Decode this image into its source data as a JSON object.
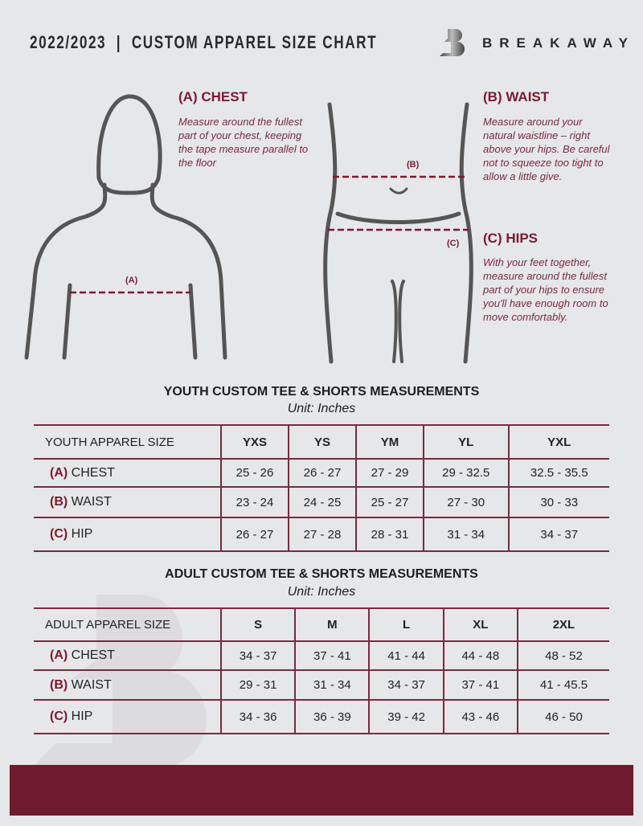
{
  "header": {
    "title": "2022/2023  |  CUSTOM APPAREL SIZE CHART",
    "brand": "BREAKAWAY",
    "logo_letter": "B"
  },
  "measure": {
    "chest": {
      "heading": "(A) CHEST",
      "text": "Measure around the fullest part of your chest, keeping the tape measure parallel to the floor",
      "label": "(A)"
    },
    "waist": {
      "heading": "(B) WAIST",
      "text": "Measure around your natural waistline – right above your hips. Be careful not to squeeze too tight to allow a little give.",
      "label": "(B)"
    },
    "hips": {
      "heading": "(C) HIPS",
      "text": "With your feet together, measure around the fullest part of your hips to ensure you'll have enough room to move comfortably.",
      "label": "(C)"
    }
  },
  "colors": {
    "accent": "#7a1a30",
    "background": "#e6e7e9",
    "footer": "#701a2e"
  },
  "youth": {
    "title": "YOUTH CUSTOM TEE & SHORTS MEASUREMENTS",
    "unit": "Unit: Inches",
    "size_label": "YOUTH APPAREL SIZE",
    "sizes": [
      "YXS",
      "YS",
      "YM",
      "YL",
      "YXL"
    ],
    "rows": [
      {
        "code": "(A)",
        "name": "CHEST",
        "values": [
          "25 - 26",
          "26 - 27",
          "27 - 29",
          "29 - 32.5",
          "32.5 - 35.5"
        ]
      },
      {
        "code": "(B)",
        "name": "WAIST",
        "values": [
          "23 - 24",
          "24 - 25",
          "25 - 27",
          "27 - 30",
          "30 - 33"
        ]
      },
      {
        "code": "(C)",
        "name": "HIP",
        "values": [
          "26 - 27",
          "27 - 28",
          "28 - 31",
          "31 - 34",
          "34 - 37"
        ]
      }
    ]
  },
  "adult": {
    "title": "ADULT CUSTOM TEE & SHORTS MEASUREMENTS",
    "unit": "Unit: Inches",
    "size_label": "ADULT APPAREL SIZE",
    "sizes": [
      "S",
      "M",
      "L",
      "XL",
      "2XL"
    ],
    "rows": [
      {
        "code": "(A)",
        "name": "CHEST",
        "values": [
          "34 - 37",
          "37 - 41",
          "41 - 44",
          "44 - 48",
          "48 - 52"
        ]
      },
      {
        "code": "(B)",
        "name": "WAIST",
        "values": [
          "29 - 31",
          "31 - 34",
          "34 - 37",
          "37 - 41",
          "41 - 45.5"
        ]
      },
      {
        "code": "(C)",
        "name": "HIP",
        "values": [
          "34 - 36",
          "36 - 39",
          "39 - 42",
          "43 - 46",
          "46 - 50"
        ]
      }
    ]
  }
}
